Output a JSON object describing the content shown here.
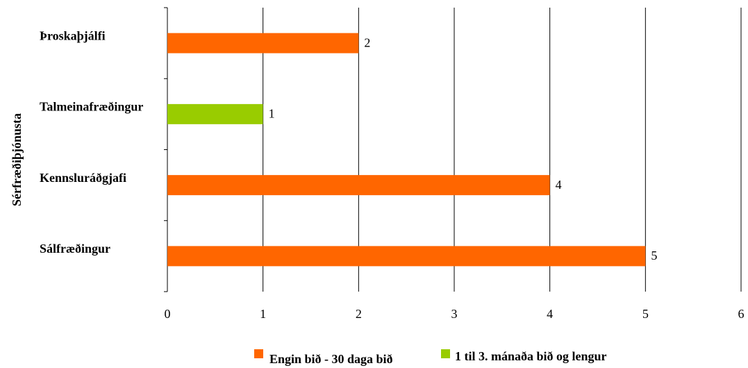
{
  "chart_data": {
    "type": "bar",
    "orientation": "horizontal",
    "ylabel": "Sérfræðiþjónusta",
    "xlabel": "",
    "xlim": [
      0,
      6
    ],
    "x_ticks": [
      "0",
      "1",
      "2",
      "3",
      "4",
      "5",
      "6"
    ],
    "grid": "vertical",
    "legend_position": "bottom",
    "categories": [
      "Þroskaþjálfi",
      "Talmeinafræðingur",
      "Kennsluráðgjafi",
      "Sálfræðingur"
    ],
    "series": [
      {
        "name": "Engin bið - 30 daga bið",
        "color": "#ff6600",
        "values": [
          2,
          null,
          4,
          5
        ]
      },
      {
        "name": "1 til 3. mánaða bið og lengur",
        "color": "#99cc00",
        "values": [
          null,
          1,
          null,
          null
        ]
      }
    ],
    "data_labels": [
      "2",
      "1",
      "4",
      "5"
    ]
  }
}
